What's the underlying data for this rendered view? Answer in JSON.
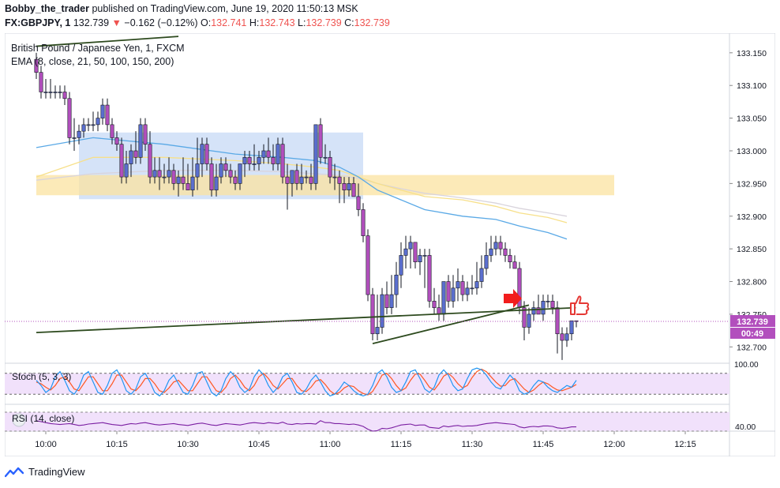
{
  "header": {
    "author": "Bobby_the_trader",
    "published_text": "published on TradingView.com, June 19, 2020 11:50:13 MSK",
    "symbol": "FX:GBPJPY, 1",
    "last": "132.739",
    "change_arrow": "▼",
    "change": "−0.162 (−0.12%)",
    "o_label": "O:",
    "o": "132.741",
    "h_label": "H:",
    "h": "132.743",
    "l_label": "L:",
    "l": "132.739",
    "c_label": "C:",
    "c": "132.739"
  },
  "legend": {
    "instrument": "British Pound / Japanese Yen, 1, FXCM",
    "ema": "EMA (8, close, 21, 50, 100, 150, 200)",
    "stoch": "Stoch (5, 3, 3)",
    "rsi": "RSI (14, close)"
  },
  "price_tag": {
    "price": "132.739",
    "countdown": "00:49"
  },
  "footer": {
    "brand": "TradingView"
  },
  "colors": {
    "candle_up": "#5b6fcf",
    "candle_down": "#b24fbd",
    "ema_fast": "#5aa9e6",
    "ema_slow1": "#f7e08a",
    "ema_slow2": "#d9d4dc",
    "zone_blue": "#c7d9f5",
    "zone_yellow": "#fbe3a0",
    "trendline": "#2d4a1e",
    "stoch_k": "#2196f3",
    "stoch_d": "#ff5722",
    "rsi": "#7b1fa2",
    "osc_bg": "#f1e1fb",
    "price_tag": "#b24fbd"
  },
  "chart_data": {
    "type": "candlestick",
    "title": "British Pound / Japanese Yen, 1, FXCM",
    "x_ticks": [
      "10:00",
      "10:15",
      "10:30",
      "10:45",
      "11:00",
      "11:15",
      "11:30",
      "11:45",
      "12:00",
      "12:15"
    ],
    "y_ticks": [
      133.15,
      133.1,
      133.05,
      133.0,
      132.95,
      132.9,
      132.85,
      132.8,
      132.75,
      132.7
    ],
    "ylim": [
      132.675,
      133.18
    ],
    "minutes": [
      -2,
      -1,
      0,
      1,
      2,
      3,
      4,
      5,
      6,
      7,
      8,
      9,
      10,
      11,
      12,
      13,
      14,
      15,
      16,
      17,
      18,
      19,
      20,
      21,
      22,
      23,
      24,
      25,
      26,
      27,
      28,
      29,
      30,
      31,
      32,
      33,
      34,
      35,
      36,
      37,
      38,
      39,
      40,
      41,
      42,
      43,
      44,
      45,
      46,
      47,
      48,
      49,
      50,
      51,
      52,
      53,
      54,
      55,
      56,
      57,
      58,
      59,
      60,
      61,
      62,
      63,
      64,
      65,
      66,
      67,
      68,
      69,
      70,
      71,
      72,
      73,
      74,
      75,
      76,
      77,
      78,
      79,
      80,
      81,
      82,
      83,
      84,
      85,
      86,
      87,
      88,
      89,
      90,
      91,
      92,
      93,
      94,
      95,
      96,
      97,
      98,
      99,
      100,
      101,
      102,
      103,
      104,
      105,
      106,
      107,
      108,
      109,
      110,
      111,
      112
    ],
    "open": [
      133.14,
      133.12,
      133.09,
      133.09,
      133.09,
      133.09,
      133.09,
      133.08,
      133.02,
      133.02,
      133.03,
      133.04,
      133.04,
      133.04,
      133.05,
      133.07,
      133.04,
      133.02,
      133.01,
      132.96,
      132.98,
      133.0,
      132.99,
      133.04,
      133.01,
      132.96,
      132.97,
      132.96,
      132.96,
      132.97,
      132.95,
      132.96,
      132.95,
      132.94,
      132.96,
      132.98,
      133.01,
      132.98,
      132.94,
      132.96,
      132.98,
      132.97,
      132.96,
      132.95,
      132.98,
      132.99,
      132.98,
      132.98,
      132.99,
      133.0,
      132.99,
      132.98,
      133.01,
      132.96,
      132.95,
      132.97,
      132.95,
      132.96,
      132.96,
      132.95,
      133.04,
      132.99,
      132.99,
      132.96,
      132.96,
      132.95,
      132.94,
      132.95,
      132.93,
      132.91,
      132.87,
      132.78,
      132.72,
      132.73,
      132.78,
      132.76,
      132.78,
      132.81,
      132.84,
      132.85,
      132.86,
      132.83,
      132.84,
      132.84,
      132.77,
      132.76,
      132.75,
      132.8,
      132.77,
      132.79,
      132.8,
      132.78,
      132.79,
      132.79,
      132.8,
      132.82,
      132.84,
      132.85,
      132.86,
      132.85,
      132.84,
      132.83,
      132.82,
      132.76,
      132.73,
      132.75,
      132.76,
      132.75,
      132.77,
      132.77,
      132.76,
      132.72,
      132.71,
      132.72,
      132.74
    ],
    "high": [
      133.15,
      133.13,
      133.11,
      133.11,
      133.1,
      133.1,
      133.1,
      133.09,
      133.05,
      133.04,
      133.05,
      133.05,
      133.06,
      133.06,
      133.08,
      133.08,
      133.05,
      133.03,
      133.02,
      133.0,
      133.01,
      133.03,
      133.05,
      133.05,
      133.03,
      132.99,
      132.99,
      132.98,
      132.99,
      132.98,
      132.97,
      132.99,
      132.98,
      132.99,
      133.02,
      133.02,
      133.02,
      132.99,
      132.98,
      132.99,
      132.99,
      132.98,
      132.97,
      132.98,
      133.0,
      133.0,
      133.01,
      133.0,
      133.01,
      133.02,
      133.01,
      133.02,
      133.02,
      132.98,
      132.97,
      132.98,
      132.98,
      132.97,
      132.98,
      133.04,
      133.05,
      133.01,
      133.0,
      132.98,
      132.97,
      132.96,
      132.96,
      132.96,
      132.95,
      132.92,
      132.88,
      132.79,
      132.78,
      132.79,
      132.8,
      132.81,
      132.83,
      132.86,
      132.87,
      132.87,
      132.86,
      132.85,
      132.85,
      132.85,
      132.79,
      132.78,
      132.8,
      132.81,
      132.81,
      132.82,
      132.81,
      132.8,
      132.81,
      132.83,
      132.84,
      132.86,
      132.87,
      132.87,
      132.87,
      132.86,
      132.85,
      132.84,
      132.83,
      132.77,
      132.76,
      132.77,
      132.78,
      132.78,
      132.78,
      132.78,
      132.77,
      132.73,
      132.73,
      132.74,
      132.74
    ],
    "low": [
      133.11,
      133.08,
      133.08,
      133.08,
      133.08,
      133.08,
      133.07,
      133.01,
      133.0,
      133.01,
      133.02,
      133.03,
      133.03,
      133.03,
      133.04,
      133.03,
      133.01,
      133.0,
      132.95,
      132.95,
      132.96,
      132.98,
      132.98,
      133.0,
      132.95,
      132.95,
      132.94,
      132.95,
      132.95,
      132.94,
      132.93,
      132.94,
      132.94,
      132.93,
      132.94,
      132.96,
      132.97,
      132.93,
      132.93,
      132.95,
      132.96,
      132.95,
      132.94,
      132.94,
      132.96,
      132.97,
      132.97,
      132.97,
      132.98,
      132.98,
      132.97,
      132.97,
      132.95,
      132.91,
      132.93,
      132.94,
      132.94,
      132.95,
      132.94,
      132.94,
      132.98,
      132.98,
      132.95,
      132.94,
      132.92,
      132.92,
      132.93,
      132.93,
      132.9,
      132.86,
      132.77,
      132.71,
      132.71,
      132.72,
      132.75,
      132.75,
      132.76,
      132.79,
      132.82,
      132.82,
      132.82,
      132.81,
      132.79,
      132.76,
      132.75,
      132.74,
      132.74,
      132.76,
      132.76,
      132.77,
      132.77,
      132.77,
      132.78,
      132.78,
      132.79,
      132.81,
      132.83,
      132.84,
      132.84,
      132.83,
      132.82,
      132.82,
      132.75,
      132.71,
      132.72,
      132.74,
      132.75,
      132.74,
      132.76,
      132.75,
      132.69,
      132.68,
      132.7,
      132.71,
      132.73
    ],
    "close": [
      133.12,
      133.09,
      133.09,
      133.09,
      133.09,
      133.09,
      133.08,
      133.02,
      133.02,
      133.03,
      133.04,
      133.04,
      133.04,
      133.05,
      133.07,
      133.04,
      133.02,
      133.01,
      132.96,
      132.98,
      133.0,
      132.99,
      133.04,
      133.01,
      132.96,
      132.97,
      132.96,
      132.96,
      132.97,
      132.95,
      132.96,
      132.95,
      132.94,
      132.96,
      132.98,
      133.01,
      132.98,
      132.94,
      132.96,
      132.98,
      132.97,
      132.96,
      132.95,
      132.98,
      132.99,
      132.98,
      132.98,
      132.99,
      133.0,
      132.99,
      132.98,
      133.01,
      132.96,
      132.95,
      132.97,
      132.95,
      132.96,
      132.96,
      132.95,
      133.04,
      132.99,
      132.99,
      132.96,
      132.96,
      132.95,
      132.94,
      132.95,
      132.93,
      132.91,
      132.87,
      132.78,
      132.72,
      132.73,
      132.78,
      132.76,
      132.78,
      132.81,
      132.84,
      132.85,
      132.86,
      132.83,
      132.84,
      132.84,
      132.77,
      132.76,
      132.75,
      132.8,
      132.77,
      132.79,
      132.8,
      132.78,
      132.79,
      132.79,
      132.8,
      132.82,
      132.84,
      132.85,
      132.86,
      132.85,
      132.84,
      132.83,
      132.82,
      132.76,
      132.73,
      132.75,
      132.76,
      132.75,
      132.77,
      132.77,
      132.76,
      132.72,
      132.71,
      132.72,
      132.74,
      132.739
    ],
    "ema_fast": {
      "minutes": [
        -2,
        10,
        25,
        40,
        50,
        57,
        62,
        66,
        70,
        75,
        80,
        88,
        95,
        100,
        106,
        110
      ],
      "values": [
        133.005,
        133.02,
        133.01,
        132.995,
        132.99,
        132.985,
        132.975,
        132.96,
        132.94,
        132.925,
        132.91,
        132.9,
        132.895,
        132.885,
        132.875,
        132.865
      ]
    },
    "ema_slow1": {
      "minutes": [
        -2,
        10,
        25,
        40,
        50,
        57,
        62,
        66,
        70,
        75,
        80,
        88,
        95,
        100,
        106,
        110
      ],
      "values": [
        132.96,
        132.99,
        132.99,
        132.985,
        132.98,
        132.975,
        132.97,
        132.96,
        132.95,
        132.94,
        132.93,
        132.925,
        132.915,
        132.905,
        132.898,
        132.89
      ]
    },
    "ema_slow2": {
      "minutes": [
        -2,
        10,
        25,
        40,
        50,
        57,
        62,
        66,
        70,
        75,
        80,
        88,
        95,
        100,
        106,
        110
      ],
      "values": [
        132.955,
        132.965,
        132.97,
        132.97,
        132.968,
        132.965,
        132.962,
        132.958,
        132.95,
        132.942,
        132.935,
        132.928,
        132.92,
        132.912,
        132.905,
        132.9
      ]
    },
    "zones": [
      {
        "color": "blue",
        "start": 7,
        "end": 67,
        "top": 133.028,
        "bottom": 132.926
      },
      {
        "color": "yellow",
        "start": -2,
        "end": 120,
        "top": 132.963,
        "bottom": 132.932
      }
    ],
    "trendlines": [
      {
        "from": [
          -2,
          133.16
        ],
        "to": [
          28,
          133.175
        ]
      },
      {
        "from": [
          -2,
          132.722
        ],
        "to": [
          112,
          132.76
        ]
      },
      {
        "from": [
          69,
          132.705
        ],
        "to": [
          102,
          132.764
        ]
      }
    ],
    "current_price_line": 132.739,
    "stoch": {
      "ylim": [
        0,
        100
      ],
      "k": [
        60,
        45,
        25,
        35,
        70,
        85,
        60,
        30,
        20,
        40,
        75,
        85,
        55,
        25,
        20,
        45,
        80,
        90,
        65,
        30,
        20,
        35,
        70,
        80,
        55,
        25,
        15,
        30,
        60,
        75,
        50,
        25,
        20,
        45,
        80,
        85,
        55,
        25,
        15,
        30,
        65,
        85,
        70,
        40,
        25,
        35,
        70,
        90,
        75,
        45,
        25,
        40,
        70,
        80,
        55,
        25,
        20,
        35,
        60,
        75,
        55,
        30,
        15,
        20,
        35,
        55,
        45,
        30,
        20,
        15,
        20,
        45,
        80,
        90,
        70,
        40,
        25,
        30,
        55,
        85,
        90,
        65,
        35,
        25,
        40,
        75,
        90,
        75,
        45,
        30,
        35,
        65,
        90,
        95,
        90,
        75,
        55,
        40,
        35,
        55,
        75,
        60,
        30,
        20,
        25,
        45,
        60,
        55,
        40,
        30,
        25,
        35,
        45,
        40,
        60
      ],
      "d": [
        55,
        50,
        40,
        32,
        45,
        65,
        70,
        55,
        35,
        30,
        50,
        70,
        70,
        50,
        30,
        30,
        50,
        75,
        75,
        55,
        35,
        30,
        45,
        65,
        65,
        50,
        30,
        25,
        38,
        55,
        60,
        45,
        30,
        30,
        50,
        70,
        70,
        50,
        30,
        25,
        40,
        65,
        75,
        60,
        40,
        30,
        45,
        70,
        80,
        65,
        45,
        35,
        50,
        65,
        65,
        45,
        30,
        28,
        40,
        58,
        62,
        48,
        30,
        20,
        25,
        38,
        45,
        42,
        30,
        22,
        18,
        28,
        50,
        75,
        80,
        65,
        45,
        30,
        38,
        60,
        78,
        78,
        60,
        40,
        32,
        50,
        72,
        80,
        68,
        50,
        38,
        45,
        68,
        85,
        92,
        85,
        70,
        55,
        43,
        45,
        60,
        65,
        50,
        35,
        25,
        32,
        45,
        55,
        50,
        40,
        32,
        30,
        35,
        40,
        48
      ]
    },
    "rsi": {
      "y_tick": "40.00",
      "ylim": [
        20,
        80
      ],
      "values": [
        52,
        50,
        48,
        46,
        45,
        44,
        45,
        46,
        44,
        42,
        43,
        45,
        46,
        47,
        48,
        46,
        44,
        43,
        42,
        44,
        46,
        45,
        47,
        48,
        46,
        44,
        43,
        44,
        45,
        46,
        44,
        43,
        42,
        44,
        46,
        47,
        45,
        43,
        42,
        44,
        46,
        45,
        44,
        43,
        45,
        47,
        48,
        47,
        46,
        48,
        47,
        46,
        49,
        45,
        44,
        46,
        45,
        46,
        46,
        45,
        52,
        48,
        48,
        46,
        46,
        45,
        44,
        45,
        43,
        40,
        34,
        30,
        31,
        36,
        35,
        37,
        40,
        43,
        44,
        45,
        42,
        43,
        43,
        38,
        37,
        36,
        41,
        39,
        41,
        42,
        40,
        41,
        41,
        42,
        44,
        46,
        47,
        48,
        47,
        46,
        45,
        44,
        39,
        37,
        39,
        40,
        39,
        41,
        41,
        40,
        37,
        36,
        37,
        39,
        39
      ]
    }
  }
}
